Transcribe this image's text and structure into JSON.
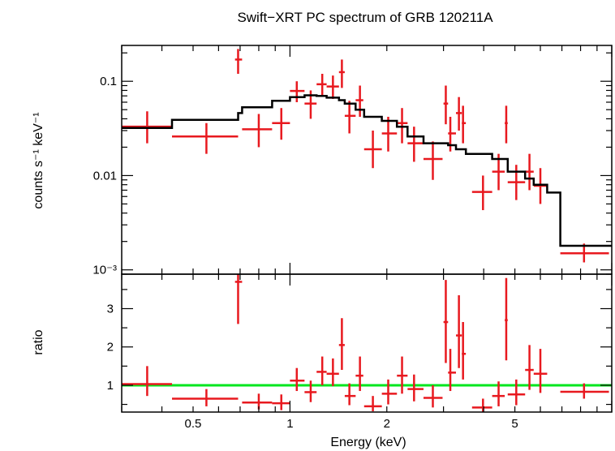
{
  "chart_data": [
    {
      "type": "scatter",
      "title": "Swift−XRT PC spectrum of GRB 120211A",
      "xlabel": "",
      "ylabel": "counts s⁻¹ keV⁻¹",
      "xscale": "log",
      "yscale": "log",
      "xlim": [
        0.3,
        10
      ],
      "ylim": [
        0.0009,
        0.24
      ],
      "y_ticks": [
        {
          "value": 0.1,
          "label": "0.1"
        },
        {
          "value": 0.01,
          "label": "0.01"
        },
        {
          "value": 0.001,
          "label": "10⁻³"
        }
      ],
      "grid": false,
      "colors": {
        "data": "#e8191f",
        "model": "#000000"
      },
      "series": [
        {
          "points": [
            {
              "x": 0.36,
              "xerr": [
                0.3,
                0.43
              ],
              "y": 0.033,
              "yerr": [
                0.022,
                0.048
              ]
            },
            {
              "x": 0.55,
              "xerr": [
                0.43,
                0.69
              ],
              "y": 0.026,
              "yerr": [
                0.017,
                0.036
              ]
            },
            {
              "x": 0.69,
              "xerr": [
                0.675,
                0.71
              ],
              "y": 0.17,
              "yerr": [
                0.12,
                0.22
              ]
            },
            {
              "x": 0.8,
              "xerr": [
                0.71,
                0.88
              ],
              "y": 0.031,
              "yerr": [
                0.02,
                0.045
              ]
            },
            {
              "x": 0.94,
              "xerr": [
                0.88,
                1.0
              ],
              "y": 0.036,
              "yerr": [
                0.024,
                0.052
              ]
            },
            {
              "x": 1.05,
              "xerr": [
                1.0,
                1.11
              ],
              "y": 0.079,
              "yerr": [
                0.06,
                0.1
              ]
            },
            {
              "x": 1.16,
              "xerr": [
                1.11,
                1.21
              ],
              "y": 0.058,
              "yerr": [
                0.04,
                0.08
              ]
            },
            {
              "x": 1.26,
              "xerr": [
                1.21,
                1.3
              ],
              "y": 0.093,
              "yerr": [
                0.07,
                0.12
              ]
            },
            {
              "x": 1.36,
              "xerr": [
                1.3,
                1.42
              ],
              "y": 0.088,
              "yerr": [
                0.065,
                0.115
              ]
            },
            {
              "x": 1.45,
              "xerr": [
                1.42,
                1.48
              ],
              "y": 0.125,
              "yerr": [
                0.085,
                0.17
              ]
            },
            {
              "x": 1.53,
              "xerr": [
                1.48,
                1.6
              ],
              "y": 0.043,
              "yerr": [
                0.028,
                0.062
              ]
            },
            {
              "x": 1.65,
              "xerr": [
                1.6,
                1.69
              ],
              "y": 0.063,
              "yerr": [
                0.042,
                0.09
              ]
            },
            {
              "x": 1.81,
              "xerr": [
                1.7,
                1.93
              ],
              "y": 0.019,
              "yerr": [
                0.012,
                0.03
              ]
            },
            {
              "x": 2.02,
              "xerr": [
                1.93,
                2.15
              ],
              "y": 0.028,
              "yerr": [
                0.018,
                0.042
              ]
            },
            {
              "x": 2.23,
              "xerr": [
                2.15,
                2.32
              ],
              "y": 0.036,
              "yerr": [
                0.022,
                0.052
              ]
            },
            {
              "x": 2.43,
              "xerr": [
                2.32,
                2.6
              ],
              "y": 0.022,
              "yerr": [
                0.014,
                0.033
              ]
            },
            {
              "x": 2.78,
              "xerr": [
                2.6,
                2.98
              ],
              "y": 0.015,
              "yerr": [
                0.009,
                0.023
              ]
            },
            {
              "x": 3.05,
              "xerr": [
                3.0,
                3.1
              ],
              "y": 0.058,
              "yerr": [
                0.035,
                0.09
              ]
            },
            {
              "x": 3.15,
              "xerr": [
                3.1,
                3.28
              ],
              "y": 0.028,
              "yerr": [
                0.018,
                0.042
              ]
            },
            {
              "x": 3.35,
              "xerr": [
                3.28,
                3.42
              ],
              "y": 0.046,
              "yerr": [
                0.03,
                0.068
              ]
            },
            {
              "x": 3.45,
              "xerr": [
                3.42,
                3.52
              ],
              "y": 0.036,
              "yerr": [
                0.022,
                0.055
              ]
            },
            {
              "x": 3.98,
              "xerr": [
                3.68,
                4.25
              ],
              "y": 0.0067,
              "yerr": [
                0.0043,
                0.01
              ]
            },
            {
              "x": 4.45,
              "xerr": [
                4.25,
                4.65
              ],
              "y": 0.011,
              "yerr": [
                0.007,
                0.017
              ]
            },
            {
              "x": 4.7,
              "xerr": [
                4.65,
                4.75
              ],
              "y": 0.036,
              "yerr": [
                0.022,
                0.055
              ]
            },
            {
              "x": 5.05,
              "xerr": [
                4.75,
                5.38
              ],
              "y": 0.0085,
              "yerr": [
                0.0055,
                0.013
              ]
            },
            {
              "x": 5.55,
              "xerr": [
                5.38,
                5.72
              ],
              "y": 0.011,
              "yerr": [
                0.007,
                0.017
              ]
            },
            {
              "x": 6.0,
              "xerr": [
                5.72,
                6.3
              ],
              "y": 0.0078,
              "yerr": [
                0.005,
                0.012
              ]
            },
            {
              "x": 8.2,
              "xerr": [
                6.92,
                9.8
              ],
              "y": 0.0015,
              "yerr": [
                0.0012,
                0.0019
              ]
            }
          ]
        }
      ],
      "model_step": [
        [
          0.3,
          0.032
        ],
        [
          0.43,
          0.039
        ],
        [
          0.69,
          0.046
        ],
        [
          0.71,
          0.053
        ],
        [
          0.88,
          0.062
        ],
        [
          1.0,
          0.068
        ],
        [
          1.11,
          0.071
        ],
        [
          1.21,
          0.07
        ],
        [
          1.3,
          0.067
        ],
        [
          1.42,
          0.063
        ],
        [
          1.48,
          0.058
        ],
        [
          1.6,
          0.05
        ],
        [
          1.7,
          0.042
        ],
        [
          1.93,
          0.038
        ],
        [
          2.15,
          0.033
        ],
        [
          2.32,
          0.026
        ],
        [
          2.6,
          0.022
        ],
        [
          3.1,
          0.021
        ],
        [
          3.28,
          0.019
        ],
        [
          3.52,
          0.017
        ],
        [
          4.25,
          0.015
        ],
        [
          4.75,
          0.011
        ],
        [
          5.38,
          0.0093
        ],
        [
          5.72,
          0.008
        ],
        [
          6.3,
          0.0066
        ],
        [
          6.92,
          0.0018
        ],
        [
          10.0,
          0.0018
        ]
      ]
    },
    {
      "type": "scatter",
      "xlabel": "Energy (keV)",
      "ylabel": "ratio",
      "xscale": "log",
      "yscale": "linear",
      "xlim": [
        0.3,
        10
      ],
      "ylim": [
        0.3,
        3.9
      ],
      "x_ticks": [
        {
          "value": 0.5,
          "label": "0.5"
        },
        {
          "value": 1,
          "label": "1"
        },
        {
          "value": 2,
          "label": "2"
        },
        {
          "value": 5,
          "label": "5"
        }
      ],
      "y_ticks": [
        {
          "value": 1,
          "label": "1"
        },
        {
          "value": 2,
          "label": "2"
        },
        {
          "value": 3,
          "label": "3"
        }
      ],
      "grid": false,
      "reference_line": {
        "y": 1,
        "color": "#00e61e"
      },
      "colors": {
        "data": "#e8191f"
      },
      "series": [
        {
          "points": [
            {
              "x": 0.36,
              "xerr": [
                0.3,
                0.43
              ],
              "y": 1.03,
              "yerr": [
                0.72,
                1.5
              ]
            },
            {
              "x": 0.55,
              "xerr": [
                0.43,
                0.69
              ],
              "y": 0.65,
              "yerr": [
                0.45,
                0.9
              ]
            },
            {
              "x": 0.69,
              "xerr": [
                0.675,
                0.71
              ],
              "y": 3.7,
              "yerr": [
                2.6,
                3.9
              ]
            },
            {
              "x": 0.8,
              "xerr": [
                0.71,
                0.88
              ],
              "y": 0.55,
              "yerr": [
                0.37,
                0.78
              ]
            },
            {
              "x": 0.94,
              "xerr": [
                0.88,
                1.0
              ],
              "y": 0.53,
              "yerr": [
                0.35,
                0.76
              ]
            },
            {
              "x": 1.05,
              "xerr": [
                1.0,
                1.11
              ],
              "y": 1.12,
              "yerr": [
                0.85,
                1.45
              ]
            },
            {
              "x": 1.16,
              "xerr": [
                1.11,
                1.21
              ],
              "y": 0.82,
              "yerr": [
                0.56,
                1.12
              ]
            },
            {
              "x": 1.26,
              "xerr": [
                1.21,
                1.3
              ],
              "y": 1.35,
              "yerr": [
                1.0,
                1.75
              ]
            },
            {
              "x": 1.36,
              "xerr": [
                1.3,
                1.42
              ],
              "y": 1.3,
              "yerr": [
                0.98,
                1.7
              ]
            },
            {
              "x": 1.45,
              "xerr": [
                1.42,
                1.48
              ],
              "y": 2.05,
              "yerr": [
                1.4,
                2.75
              ]
            },
            {
              "x": 1.53,
              "xerr": [
                1.48,
                1.6
              ],
              "y": 0.72,
              "yerr": [
                0.48,
                1.05
              ]
            },
            {
              "x": 1.65,
              "xerr": [
                1.6,
                1.69
              ],
              "y": 1.25,
              "yerr": [
                0.85,
                1.75
              ]
            },
            {
              "x": 1.81,
              "xerr": [
                1.7,
                1.93
              ],
              "y": 0.45,
              "yerr": [
                0.32,
                0.72
              ]
            },
            {
              "x": 2.02,
              "xerr": [
                1.93,
                2.15
              ],
              "y": 0.78,
              "yerr": [
                0.5,
                1.15
              ]
            },
            {
              "x": 2.23,
              "xerr": [
                2.15,
                2.32
              ],
              "y": 1.25,
              "yerr": [
                0.78,
                1.75
              ]
            },
            {
              "x": 2.43,
              "xerr": [
                2.32,
                2.6
              ],
              "y": 0.9,
              "yerr": [
                0.58,
                1.28
              ]
            },
            {
              "x": 2.78,
              "xerr": [
                2.6,
                2.98
              ],
              "y": 0.67,
              "yerr": [
                0.42,
                1.0
              ]
            },
            {
              "x": 3.05,
              "xerr": [
                3.0,
                3.1
              ],
              "y": 2.65,
              "yerr": [
                1.58,
                3.75
              ]
            },
            {
              "x": 3.15,
              "xerr": [
                3.1,
                3.28
              ],
              "y": 1.33,
              "yerr": [
                0.85,
                1.95
              ]
            },
            {
              "x": 3.35,
              "xerr": [
                3.28,
                3.42
              ],
              "y": 2.3,
              "yerr": [
                1.45,
                3.35
              ]
            },
            {
              "x": 3.45,
              "xerr": [
                3.42,
                3.52
              ],
              "y": 1.82,
              "yerr": [
                1.15,
                2.65
              ]
            },
            {
              "x": 3.98,
              "xerr": [
                3.68,
                4.25
              ],
              "y": 0.42,
              "yerr": [
                0.3,
                0.65
              ]
            },
            {
              "x": 4.45,
              "xerr": [
                4.25,
                4.65
              ],
              "y": 0.72,
              "yerr": [
                0.45,
                1.1
              ]
            },
            {
              "x": 4.7,
              "xerr": [
                4.65,
                4.75
              ],
              "y": 2.7,
              "yerr": [
                1.65,
                3.8
              ]
            },
            {
              "x": 5.05,
              "xerr": [
                4.75,
                5.38
              ],
              "y": 0.76,
              "yerr": [
                0.48,
                1.15
              ]
            },
            {
              "x": 5.55,
              "xerr": [
                5.38,
                5.72
              ],
              "y": 1.4,
              "yerr": [
                0.88,
                2.05
              ]
            },
            {
              "x": 6.0,
              "xerr": [
                5.72,
                6.3
              ],
              "y": 1.3,
              "yerr": [
                0.8,
                1.95
              ]
            },
            {
              "x": 8.2,
              "xerr": [
                6.92,
                9.8
              ],
              "y": 0.83,
              "yerr": [
                0.65,
                1.05
              ]
            }
          ]
        }
      ]
    }
  ]
}
